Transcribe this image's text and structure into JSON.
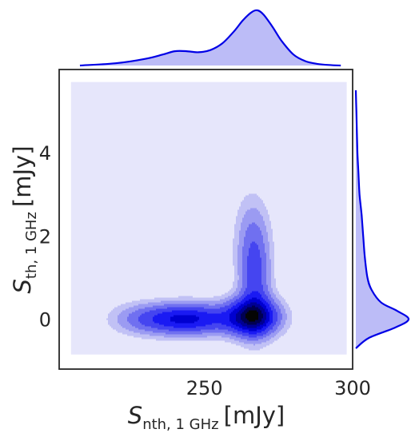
{
  "chart_data": {
    "type": "kde-joint",
    "description_free": true,
    "x_axis": {
      "label_symbol": "S",
      "label_subscript": "nth, 1 GHz",
      "label_unit": "[mJy]",
      "range": [
        201,
        300
      ],
      "ticks": [
        250,
        300
      ],
      "tick_labels": [
        "250",
        "300"
      ]
    },
    "y_axis": {
      "label_symbol": "S",
      "label_subscript": "th, 1 GHz",
      "label_unit": "[mJy]",
      "range": [
        -1.2,
        6.0
      ],
      "ticks": [
        0,
        2,
        4
      ],
      "tick_labels": [
        "0",
        "2",
        "4"
      ]
    },
    "colors": {
      "marginal_line": "#0000e6",
      "marginal_fill": "#bcbcf7",
      "background_fill": "#e6e6fb",
      "frame": "#262626",
      "contour_levels": [
        "#c1c1f5",
        "#9b9bf2",
        "#7070f0",
        "#4545f0",
        "#1a1af3",
        "#0000d0",
        "#000094",
        "#000052",
        "#050505"
      ]
    },
    "joint_kde_fill_extent": {
      "x": [
        205,
        298
      ],
      "y": [
        -0.85,
        5.7
      ]
    },
    "kde_components": [
      {
        "mean_x": 244,
        "mean_y": 0.0,
        "sd_x": 10,
        "sd_y": 0.25,
        "weight": 1.0
      },
      {
        "mean_x": 266,
        "mean_y": 0.05,
        "sd_x": 6,
        "sd_y": 0.3,
        "weight": 1.3
      },
      {
        "mean_x": 267,
        "mean_y": 0.9,
        "sd_x": 3.5,
        "sd_y": 0.8,
        "weight": 0.55
      },
      {
        "mean_x": 266,
        "mean_y": 2.0,
        "sd_x": 4,
        "sd_y": 0.7,
        "weight": 0.25
      },
      {
        "mean_x": 228,
        "mean_y": 0.0,
        "sd_x": 7,
        "sd_y": 0.25,
        "weight": 0.25
      }
    ],
    "contour_thresholds": [
      0.06,
      0.12,
      0.2,
      0.3,
      0.42,
      0.55,
      0.68,
      0.8,
      0.92
    ],
    "marginal_x_density": {
      "x": [
        208,
        220,
        230,
        236,
        240,
        244,
        248,
        252,
        256,
        260,
        263,
        266,
        268,
        270,
        273,
        276,
        280,
        284,
        288,
        292,
        296
      ],
      "density": [
        0.0,
        0.04,
        0.12,
        0.2,
        0.26,
        0.26,
        0.24,
        0.28,
        0.4,
        0.62,
        0.82,
        0.97,
        1.0,
        0.92,
        0.7,
        0.45,
        0.2,
        0.08,
        0.03,
        0.01,
        0.0
      ]
    },
    "marginal_y_density": {
      "y": [
        -0.7,
        -0.45,
        -0.2,
        0.0,
        0.2,
        0.4,
        0.7,
        1.0,
        1.5,
        2.0,
        2.5,
        3.0,
        3.5,
        4.0,
        4.5,
        5.0,
        5.5
      ],
      "density": [
        0.0,
        0.25,
        0.75,
        1.0,
        0.78,
        0.48,
        0.3,
        0.22,
        0.17,
        0.14,
        0.11,
        0.07,
        0.05,
        0.03,
        0.02,
        0.01,
        0.0
      ]
    }
  }
}
